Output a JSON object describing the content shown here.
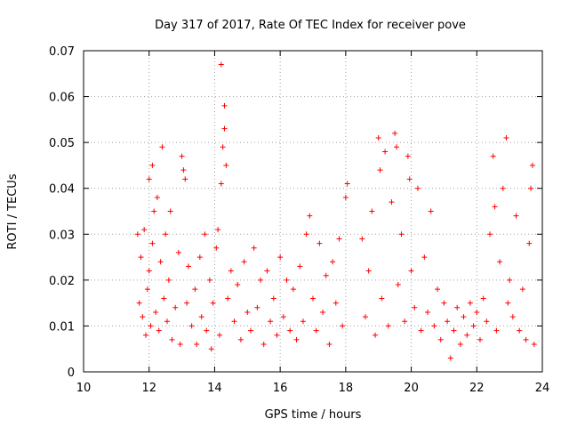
{
  "chart_data": {
    "type": "scatter",
    "title": "Day 317 of 2017, Rate Of TEC Index for receiver pove",
    "xlabel": "GPS time / hours",
    "ylabel": "ROTI / TECUs",
    "xlim": [
      10,
      24
    ],
    "ylim": [
      0,
      0.07
    ],
    "xticks": [
      10,
      12,
      14,
      16,
      18,
      20,
      22,
      24
    ],
    "xtick_labels": [
      "10",
      "12",
      "14",
      "16",
      "18",
      "20",
      "22",
      "24"
    ],
    "yticks": [
      0,
      0.01,
      0.02,
      0.03,
      0.04,
      0.05,
      0.06,
      0.07
    ],
    "ytick_labels": [
      "0",
      "0.01",
      "0.02",
      "0.03",
      "0.04",
      "0.05",
      "0.06",
      "0.07"
    ],
    "grid": true,
    "marker": "plus",
    "color": "#ff0000",
    "series": [
      {
        "points": [
          [
            11.65,
            0.03
          ],
          [
            11.7,
            0.015
          ],
          [
            11.75,
            0.025
          ],
          [
            11.8,
            0.012
          ],
          [
            11.85,
            0.031
          ],
          [
            11.9,
            0.008
          ],
          [
            11.95,
            0.018
          ],
          [
            12.0,
            0.042
          ],
          [
            12.0,
            0.022
          ],
          [
            12.05,
            0.01
          ],
          [
            12.1,
            0.045
          ],
          [
            12.1,
            0.028
          ],
          [
            12.15,
            0.035
          ],
          [
            12.2,
            0.013
          ],
          [
            12.25,
            0.038
          ],
          [
            12.3,
            0.009
          ],
          [
            12.35,
            0.024
          ],
          [
            12.4,
            0.049
          ],
          [
            12.45,
            0.016
          ],
          [
            12.5,
            0.03
          ],
          [
            12.55,
            0.011
          ],
          [
            12.6,
            0.02
          ],
          [
            12.65,
            0.035
          ],
          [
            12.7,
            0.007
          ],
          [
            12.8,
            0.014
          ],
          [
            12.9,
            0.026
          ],
          [
            12.95,
            0.006
          ],
          [
            13.0,
            0.047
          ],
          [
            13.05,
            0.044
          ],
          [
            13.1,
            0.042
          ],
          [
            13.15,
            0.015
          ],
          [
            13.2,
            0.023
          ],
          [
            13.3,
            0.01
          ],
          [
            13.4,
            0.018
          ],
          [
            13.45,
            0.006
          ],
          [
            13.55,
            0.025
          ],
          [
            13.6,
            0.012
          ],
          [
            13.7,
            0.03
          ],
          [
            13.75,
            0.009
          ],
          [
            13.85,
            0.02
          ],
          [
            13.9,
            0.005
          ],
          [
            13.95,
            0.015
          ],
          [
            14.05,
            0.027
          ],
          [
            14.1,
            0.031
          ],
          [
            14.15,
            0.008
          ],
          [
            14.2,
            0.041
          ],
          [
            14.2,
            0.067
          ],
          [
            14.25,
            0.049
          ],
          [
            14.3,
            0.053
          ],
          [
            14.3,
            0.058
          ],
          [
            14.35,
            0.045
          ],
          [
            14.4,
            0.016
          ],
          [
            14.5,
            0.022
          ],
          [
            14.6,
            0.011
          ],
          [
            14.7,
            0.019
          ],
          [
            14.8,
            0.007
          ],
          [
            14.9,
            0.024
          ],
          [
            15.0,
            0.013
          ],
          [
            15.1,
            0.009
          ],
          [
            15.2,
            0.027
          ],
          [
            15.3,
            0.014
          ],
          [
            15.4,
            0.02
          ],
          [
            15.5,
            0.006
          ],
          [
            15.6,
            0.022
          ],
          [
            15.7,
            0.011
          ],
          [
            15.8,
            0.016
          ],
          [
            15.9,
            0.008
          ],
          [
            16.0,
            0.025
          ],
          [
            16.1,
            0.012
          ],
          [
            16.2,
            0.02
          ],
          [
            16.3,
            0.009
          ],
          [
            16.4,
            0.018
          ],
          [
            16.5,
            0.007
          ],
          [
            16.6,
            0.023
          ],
          [
            16.7,
            0.011
          ],
          [
            16.8,
            0.03
          ],
          [
            16.9,
            0.034
          ],
          [
            17.0,
            0.016
          ],
          [
            17.1,
            0.009
          ],
          [
            17.2,
            0.028
          ],
          [
            17.3,
            0.013
          ],
          [
            17.4,
            0.021
          ],
          [
            17.5,
            0.006
          ],
          [
            17.6,
            0.024
          ],
          [
            17.7,
            0.015
          ],
          [
            17.8,
            0.029
          ],
          [
            17.9,
            0.01
          ],
          [
            18.0,
            0.038
          ],
          [
            18.05,
            0.041
          ],
          [
            18.5,
            0.029
          ],
          [
            18.6,
            0.012
          ],
          [
            18.7,
            0.022
          ],
          [
            18.8,
            0.035
          ],
          [
            18.9,
            0.008
          ],
          [
            19.0,
            0.051
          ],
          [
            19.05,
            0.044
          ],
          [
            19.1,
            0.016
          ],
          [
            19.2,
            0.048
          ],
          [
            19.3,
            0.01
          ],
          [
            19.4,
            0.037
          ],
          [
            19.5,
            0.052
          ],
          [
            19.55,
            0.049
          ],
          [
            19.6,
            0.019
          ],
          [
            19.7,
            0.03
          ],
          [
            19.8,
            0.011
          ],
          [
            19.9,
            0.047
          ],
          [
            19.95,
            0.042
          ],
          [
            20.0,
            0.022
          ],
          [
            20.1,
            0.014
          ],
          [
            20.2,
            0.04
          ],
          [
            20.3,
            0.009
          ],
          [
            20.4,
            0.025
          ],
          [
            20.5,
            0.013
          ],
          [
            20.6,
            0.035
          ],
          [
            20.7,
            0.01
          ],
          [
            20.8,
            0.018
          ],
          [
            20.9,
            0.007
          ],
          [
            21.0,
            0.015
          ],
          [
            21.1,
            0.011
          ],
          [
            21.2,
            0.003
          ],
          [
            21.3,
            0.009
          ],
          [
            21.4,
            0.014
          ],
          [
            21.5,
            0.006
          ],
          [
            21.6,
            0.012
          ],
          [
            21.7,
            0.008
          ],
          [
            21.8,
            0.015
          ],
          [
            21.9,
            0.01
          ],
          [
            22.0,
            0.013
          ],
          [
            22.1,
            0.007
          ],
          [
            22.2,
            0.016
          ],
          [
            22.3,
            0.011
          ],
          [
            22.4,
            0.03
          ],
          [
            22.5,
            0.047
          ],
          [
            22.55,
            0.036
          ],
          [
            22.6,
            0.009
          ],
          [
            22.7,
            0.024
          ],
          [
            22.8,
            0.04
          ],
          [
            22.9,
            0.051
          ],
          [
            22.95,
            0.015
          ],
          [
            23.0,
            0.02
          ],
          [
            23.1,
            0.012
          ],
          [
            23.2,
            0.034
          ],
          [
            23.3,
            0.009
          ],
          [
            23.4,
            0.018
          ],
          [
            23.5,
            0.007
          ],
          [
            23.6,
            0.028
          ],
          [
            23.65,
            0.04
          ],
          [
            23.7,
            0.045
          ],
          [
            23.75,
            0.006
          ]
        ]
      }
    ]
  }
}
